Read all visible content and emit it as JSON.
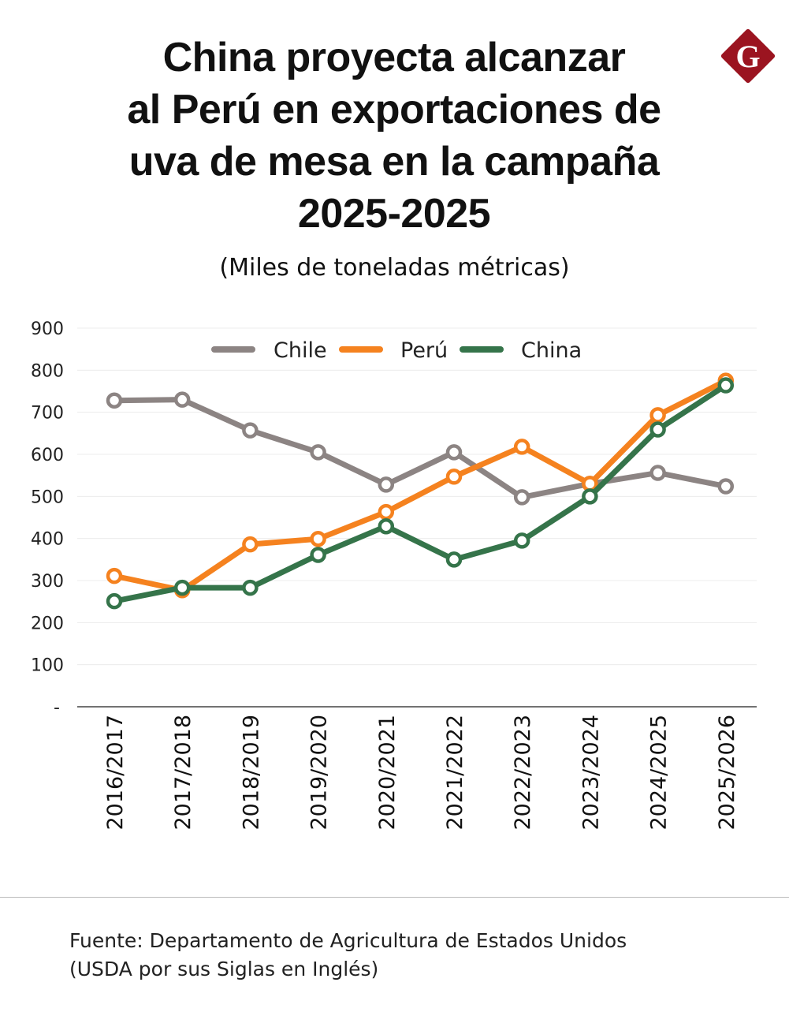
{
  "header": {
    "title": "China proyecta alcanzar al Perú en exportaciones de uva de mesa en la campaña 2025-2025",
    "logo_text": "G",
    "logo_color": "#9b1420"
  },
  "chart_data": {
    "type": "line",
    "title": "China proyecta alcanzar al Perú en exportaciones de uva de mesa en la campaña 2025-2025",
    "subtitle": "(Miles de toneladas métricas)",
    "categories": [
      "2016/2017",
      "2017/2018",
      "2018/2019",
      "2019/2020",
      "2020/2021",
      "2021/2022",
      "2022/2023",
      "2023/2024",
      "2024/2025",
      "2025/2026"
    ],
    "ylim": [
      0,
      900
    ],
    "yticks": [
      "-",
      "100",
      "200",
      "300",
      "400",
      "500",
      "600",
      "700",
      "800",
      "900"
    ],
    "grid": true,
    "legend_position": "top",
    "series": [
      {
        "name": "Chile",
        "color": "#8c8483",
        "values": [
          728,
          730,
          657,
          605,
          528,
          605,
          498,
          530,
          556,
          524
        ]
      },
      {
        "name": "Perú",
        "color": "#f5821f",
        "values": [
          311,
          277,
          386,
          399,
          463,
          547,
          618,
          530,
          693,
          775
        ]
      },
      {
        "name": "China",
        "color": "#35744a",
        "values": [
          251,
          283,
          283,
          361,
          429,
          350,
          395,
          500,
          659,
          764
        ]
      }
    ]
  },
  "footer": {
    "source_line1": "Fuente: Departamento de Agricultura de Estados Unidos",
    "source_line2": "(USDA por sus Siglas en Inglés)"
  }
}
